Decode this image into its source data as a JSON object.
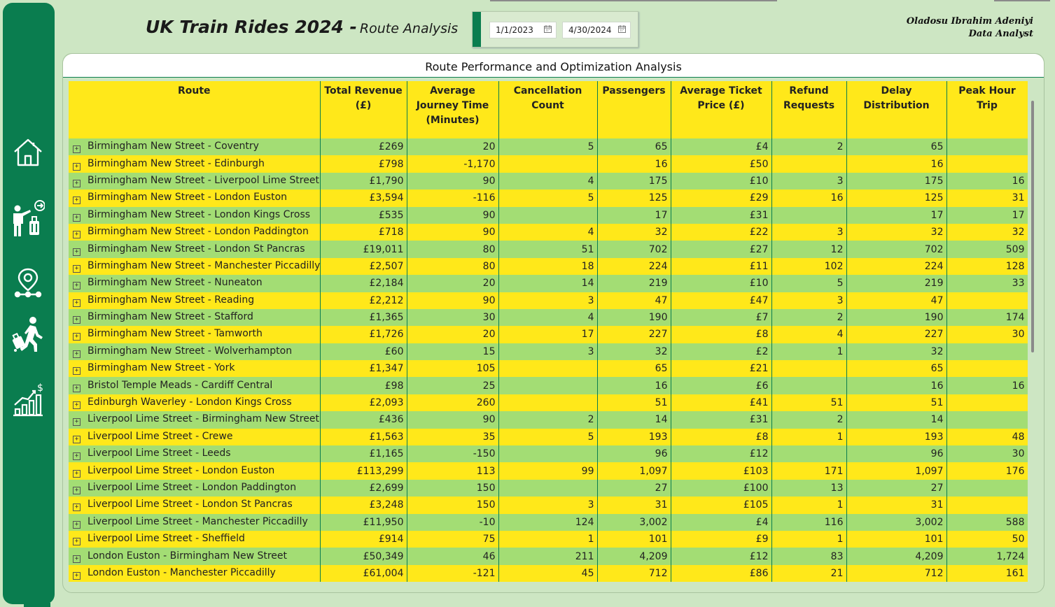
{
  "header": {
    "title": "UK Train Rides 2024 -",
    "subtitle": "Route Analysis",
    "date_start": "1/1/2023",
    "date_end": "4/30/2024",
    "author_name": "Oladosu Ibrahim Adeniyi",
    "author_role": "Data Analyst"
  },
  "sidebar": {
    "items": [
      {
        "name": "nav-home",
        "icon": "home-icon"
      },
      {
        "name": "nav-passengers",
        "icon": "passenger-luggage-icon"
      },
      {
        "name": "nav-routes",
        "icon": "location-route-icon"
      },
      {
        "name": "nav-journeys",
        "icon": "traveler-walking-icon"
      },
      {
        "name": "nav-revenue",
        "icon": "revenue-chart-icon"
      }
    ]
  },
  "panel": {
    "title": "Route Performance and Optimization Analysis"
  },
  "table": {
    "columns": [
      "Route",
      "Total Revenue (£)",
      "Average Journey Time (Minutes)",
      "Cancellation Count",
      "Passengers",
      "Average Ticket Price (£)",
      "Refund Requests",
      "Delay Distribution",
      "Peak Hour Trip"
    ],
    "rows": [
      [
        "Birmingham New Street - Coventry",
        "£269",
        "20",
        "5",
        "65",
        "£4",
        "2",
        "65",
        ""
      ],
      [
        "Birmingham New Street - Edinburgh",
        "£798",
        "-1,170",
        "",
        "16",
        "£50",
        "",
        "16",
        ""
      ],
      [
        "Birmingham New Street - Liverpool Lime Street",
        "£1,790",
        "90",
        "4",
        "175",
        "£10",
        "3",
        "175",
        "16"
      ],
      [
        "Birmingham New Street - London Euston",
        "£3,594",
        "-116",
        "5",
        "125",
        "£29",
        "16",
        "125",
        "31"
      ],
      [
        "Birmingham New Street - London Kings Cross",
        "£535",
        "90",
        "",
        "17",
        "£31",
        "",
        "17",
        "17"
      ],
      [
        "Birmingham New Street - London Paddington",
        "£718",
        "90",
        "4",
        "32",
        "£22",
        "3",
        "32",
        "32"
      ],
      [
        "Birmingham New Street - London St Pancras",
        "£19,011",
        "80",
        "51",
        "702",
        "£27",
        "12",
        "702",
        "509"
      ],
      [
        "Birmingham New Street - Manchester Piccadilly",
        "£2,507",
        "80",
        "18",
        "224",
        "£11",
        "102",
        "224",
        "128"
      ],
      [
        "Birmingham New Street - Nuneaton",
        "£2,184",
        "20",
        "14",
        "219",
        "£10",
        "5",
        "219",
        "33"
      ],
      [
        "Birmingham New Street - Reading",
        "£2,212",
        "90",
        "3",
        "47",
        "£47",
        "3",
        "47",
        ""
      ],
      [
        "Birmingham New Street - Stafford",
        "£1,365",
        "30",
        "4",
        "190",
        "£7",
        "2",
        "190",
        "174"
      ],
      [
        "Birmingham New Street - Tamworth",
        "£1,726",
        "20",
        "17",
        "227",
        "£8",
        "4",
        "227",
        "30"
      ],
      [
        "Birmingham New Street - Wolverhampton",
        "£60",
        "15",
        "3",
        "32",
        "£2",
        "1",
        "32",
        ""
      ],
      [
        "Birmingham New Street - York",
        "£1,347",
        "105",
        "",
        "65",
        "£21",
        "",
        "65",
        ""
      ],
      [
        "Bristol Temple Meads - Cardiff Central",
        "£98",
        "25",
        "",
        "16",
        "£6",
        "",
        "16",
        "16"
      ],
      [
        "Edinburgh Waverley - London Kings Cross",
        "£2,093",
        "260",
        "",
        "51",
        "£41",
        "51",
        "51",
        ""
      ],
      [
        "Liverpool Lime Street - Birmingham New Street",
        "£436",
        "90",
        "2",
        "14",
        "£31",
        "2",
        "14",
        ""
      ],
      [
        "Liverpool Lime Street - Crewe",
        "£1,563",
        "35",
        "5",
        "193",
        "£8",
        "1",
        "193",
        "48"
      ],
      [
        "Liverpool Lime Street - Leeds",
        "£1,165",
        "-150",
        "",
        "96",
        "£12",
        "",
        "96",
        "30"
      ],
      [
        "Liverpool Lime Street - London Euston",
        "£113,299",
        "113",
        "99",
        "1,097",
        "£103",
        "171",
        "1,097",
        "176"
      ],
      [
        "Liverpool Lime Street - London Paddington",
        "£2,699",
        "150",
        "",
        "27",
        "£100",
        "13",
        "27",
        ""
      ],
      [
        "Liverpool Lime Street - London St Pancras",
        "£3,248",
        "150",
        "3",
        "31",
        "£105",
        "1",
        "31",
        ""
      ],
      [
        "Liverpool Lime Street - Manchester Piccadilly",
        "£11,950",
        "-10",
        "124",
        "3,002",
        "£4",
        "116",
        "3,002",
        "588"
      ],
      [
        "Liverpool Lime Street - Sheffield",
        "£914",
        "75",
        "1",
        "101",
        "£9",
        "1",
        "101",
        "50"
      ],
      [
        "London Euston - Birmingham New Street",
        "£50,349",
        "46",
        "211",
        "4,209",
        "£12",
        "83",
        "4,209",
        "1,724"
      ],
      [
        "London Euston - Manchester Piccadilly",
        "£61,004",
        "-121",
        "45",
        "712",
        "£86",
        "21",
        "712",
        "161"
      ]
    ]
  },
  "colors": {
    "sidebar": "#0a7d4f",
    "background": "#cde6c3",
    "row_green": "#a3dd74",
    "row_yellow": "#ffe81a"
  }
}
